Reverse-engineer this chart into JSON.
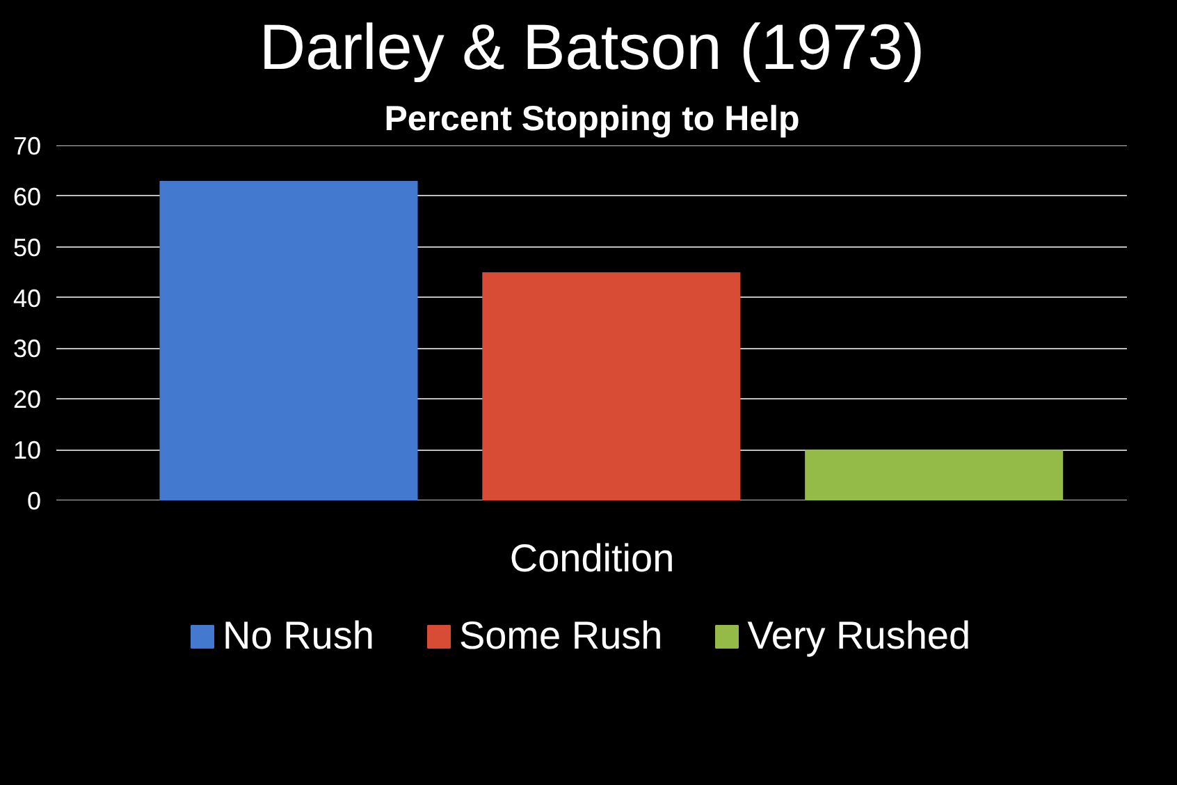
{
  "chart_data": {
    "type": "bar",
    "title": "Darley & Batson (1973)",
    "subtitle": "Percent Stopping to Help",
    "xlabel": "Condition",
    "categories": [
      null,
      null,
      null
    ],
    "series": [
      {
        "name": "No Rush",
        "color": "#4479d0",
        "values": [
          63,
          null,
          null
        ]
      },
      {
        "name": "Some Rush",
        "color": "#d84b35",
        "values": [
          null,
          45,
          null
        ]
      },
      {
        "name": "Very Rushed",
        "color": "#94bb48",
        "values": [
          null,
          null,
          10
        ]
      }
    ],
    "ylim": [
      0,
      70
    ],
    "yticks": [
      0,
      10,
      20,
      30,
      40,
      50,
      60,
      70
    ],
    "grid": "y",
    "legend": "bottom",
    "tick_labels": "y"
  }
}
